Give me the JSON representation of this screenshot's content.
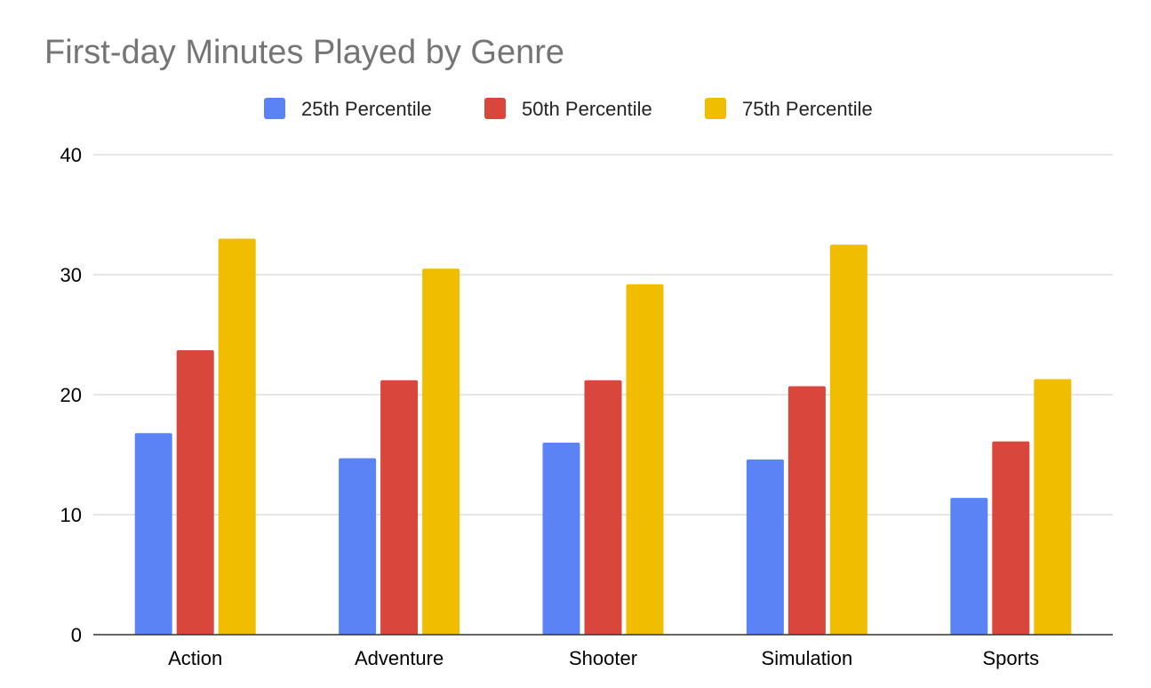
{
  "chart_data": {
    "type": "bar",
    "title": "First-day Minutes Played by Genre",
    "xlabel": "",
    "ylabel": "",
    "categories": [
      "Action",
      "Adventure",
      "Shooter",
      "Simulation",
      "Sports"
    ],
    "series": [
      {
        "name": "25th Percentile",
        "color": "#5b83f5",
        "values": [
          16.8,
          14.7,
          16.0,
          14.6,
          11.4
        ]
      },
      {
        "name": "50th Percentile",
        "color": "#d9463b",
        "values": [
          23.7,
          21.2,
          21.2,
          20.7,
          16.1
        ]
      },
      {
        "name": "75th Percentile",
        "color": "#f0bd00",
        "values": [
          33.0,
          30.5,
          29.2,
          32.5,
          21.3
        ]
      }
    ],
    "ylim": [
      0,
      40
    ],
    "yticks": [
      0,
      10,
      20,
      30,
      40
    ],
    "grid": true,
    "legend_position": "top"
  }
}
